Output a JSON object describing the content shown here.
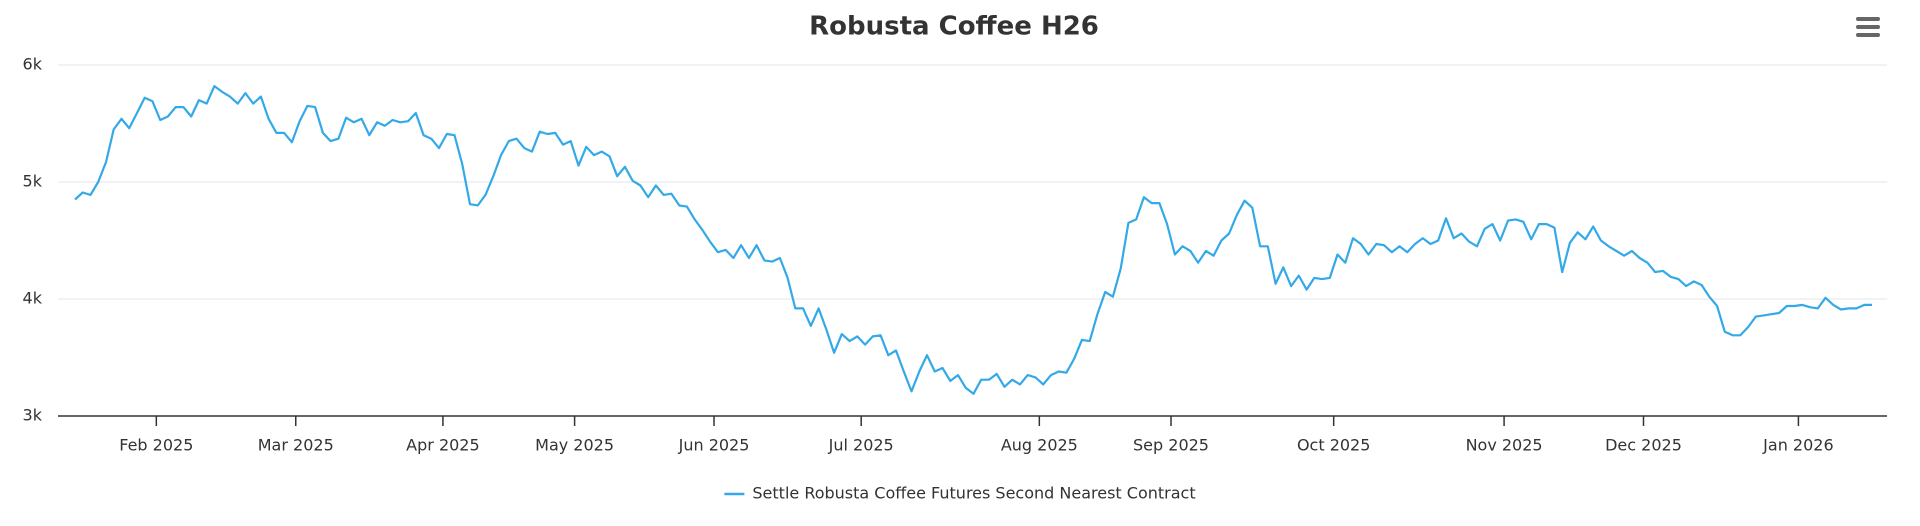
{
  "chart_data": {
    "type": "line",
    "title": "Robusta Coffee H26",
    "x": [
      "2025-01",
      "2025-01",
      "2025-01",
      "2025-01",
      "2025-01",
      "2025-01",
      "2025-01",
      "2025-01",
      "2025-01",
      "2025-01",
      "2025-01",
      "2025-02",
      "2025-02",
      "2025-02",
      "2025-02",
      "2025-02",
      "2025-02",
      "2025-02",
      "2025-02",
      "2025-02",
      "2025-02",
      "2025-02",
      "2025-02",
      "2025-02",
      "2025-02",
      "2025-02",
      "2025-02",
      "2025-02",
      "2025-02",
      "2025-03",
      "2025-03",
      "2025-03",
      "2025-03",
      "2025-03",
      "2025-03",
      "2025-03",
      "2025-03",
      "2025-03",
      "2025-03",
      "2025-03",
      "2025-03",
      "2025-03",
      "2025-03",
      "2025-03",
      "2025-03",
      "2025-03",
      "2025-03",
      "2025-03",
      "2025-04",
      "2025-04",
      "2025-04",
      "2025-04",
      "2025-04",
      "2025-04",
      "2025-04",
      "2025-04",
      "2025-04",
      "2025-04",
      "2025-04",
      "2025-04",
      "2025-04",
      "2025-04",
      "2025-04",
      "2025-04",
      "2025-04",
      "2025-05",
      "2025-05",
      "2025-05",
      "2025-05",
      "2025-05",
      "2025-05",
      "2025-05",
      "2025-05",
      "2025-05",
      "2025-05",
      "2025-05",
      "2025-05",
      "2025-05",
      "2025-05",
      "2025-05",
      "2025-05",
      "2025-05",
      "2025-05",
      "2025-06",
      "2025-06",
      "2025-06",
      "2025-06",
      "2025-06",
      "2025-06",
      "2025-06",
      "2025-06",
      "2025-06",
      "2025-06",
      "2025-06",
      "2025-06",
      "2025-06",
      "2025-06",
      "2025-06",
      "2025-06",
      "2025-06",
      "2025-06",
      "2025-06",
      "2025-07",
      "2025-07",
      "2025-07",
      "2025-07",
      "2025-07",
      "2025-07",
      "2025-07",
      "2025-07",
      "2025-07",
      "2025-07",
      "2025-07",
      "2025-07",
      "2025-07",
      "2025-07",
      "2025-07",
      "2025-07",
      "2025-07",
      "2025-07",
      "2025-07",
      "2025-07",
      "2025-07",
      "2025-07",
      "2025-07",
      "2025-08",
      "2025-08",
      "2025-08",
      "2025-08",
      "2025-08",
      "2025-08",
      "2025-08",
      "2025-08",
      "2025-08",
      "2025-08",
      "2025-08",
      "2025-08",
      "2025-08",
      "2025-08",
      "2025-08",
      "2025-08",
      "2025-08",
      "2025-09",
      "2025-09",
      "2025-09",
      "2025-09",
      "2025-09",
      "2025-09",
      "2025-09",
      "2025-09",
      "2025-09",
      "2025-09",
      "2025-09",
      "2025-09",
      "2025-09",
      "2025-09",
      "2025-09",
      "2025-09",
      "2025-09",
      "2025-09",
      "2025-09",
      "2025-09",
      "2025-09",
      "2025-10",
      "2025-10",
      "2025-10",
      "2025-10",
      "2025-10",
      "2025-10",
      "2025-10",
      "2025-10",
      "2025-10",
      "2025-10",
      "2025-10",
      "2025-10",
      "2025-10",
      "2025-10",
      "2025-10",
      "2025-10",
      "2025-10",
      "2025-10",
      "2025-10",
      "2025-10",
      "2025-10",
      "2025-10",
      "2025-11",
      "2025-11",
      "2025-11",
      "2025-11",
      "2025-11",
      "2025-11",
      "2025-11",
      "2025-11",
      "2025-11",
      "2025-11",
      "2025-11",
      "2025-11",
      "2025-11",
      "2025-11",
      "2025-11",
      "2025-11",
      "2025-11",
      "2025-11",
      "2025-12",
      "2025-12",
      "2025-12",
      "2025-12",
      "2025-12",
      "2025-12",
      "2025-12",
      "2025-12",
      "2025-12",
      "2025-12",
      "2025-12",
      "2025-12",
      "2025-12",
      "2025-12",
      "2025-12",
      "2025-12",
      "2025-12",
      "2025-12",
      "2025-12",
      "2025-12",
      "2026-01",
      "2026-01",
      "2026-01",
      "2026-01",
      "2026-01",
      "2026-01",
      "2026-01",
      "2026-01",
      "2026-01",
      "2026-01"
    ],
    "series": [
      {
        "name": "Settle Robusta Coffee Futures Second Nearest Contract",
        "color": "#33a9e8",
        "values": [
          4850,
          4910,
          4890,
          5000,
          5170,
          5450,
          5540,
          5460,
          5590,
          5720,
          5690,
          5530,
          5560,
          5640,
          5640,
          5560,
          5700,
          5670,
          5820,
          5770,
          5730,
          5670,
          5760,
          5670,
          5730,
          5540,
          5420,
          5420,
          5340,
          5520,
          5650,
          5640,
          5420,
          5350,
          5370,
          5550,
          5510,
          5540,
          5400,
          5510,
          5480,
          5530,
          5510,
          5520,
          5590,
          5400,
          5370,
          5290,
          5410,
          5400,
          5150,
          4810,
          4800,
          4890,
          5050,
          5230,
          5350,
          5370,
          5290,
          5260,
          5430,
          5410,
          5420,
          5320,
          5350,
          5140,
          5300,
          5230,
          5260,
          5220,
          5050,
          5130,
          5010,
          4970,
          4870,
          4970,
          4890,
          4900,
          4800,
          4790,
          4680,
          4590,
          4490,
          4400,
          4420,
          4350,
          4460,
          4350,
          4460,
          4330,
          4320,
          4350,
          4180,
          3920,
          3920,
          3770,
          3920,
          3740,
          3540,
          3700,
          3640,
          3680,
          3610,
          3680,
          3690,
          3520,
          3560,
          3380,
          3210,
          3380,
          3520,
          3380,
          3410,
          3300,
          3350,
          3240,
          3190,
          3310,
          3310,
          3360,
          3250,
          3310,
          3270,
          3350,
          3330,
          3270,
          3350,
          3380,
          3370,
          3490,
          3650,
          3640,
          3870,
          4060,
          4020,
          4260,
          4650,
          4680,
          4870,
          4820,
          4820,
          4640,
          4380,
          4450,
          4410,
          4310,
          4410,
          4370,
          4500,
          4560,
          4720,
          4840,
          4780,
          4450,
          4450,
          4130,
          4270,
          4110,
          4200,
          4080,
          4180,
          4170,
          4180,
          4380,
          4310,
          4520,
          4470,
          4380,
          4470,
          4460,
          4400,
          4450,
          4400,
          4470,
          4520,
          4470,
          4500,
          4690,
          4520,
          4560,
          4490,
          4450,
          4600,
          4640,
          4500,
          4670,
          4680,
          4660,
          4510,
          4640,
          4640,
          4610,
          4230,
          4480,
          4570,
          4510,
          4620,
          4500,
          4450,
          4410,
          4370,
          4410,
          4350,
          4310,
          4230,
          4240,
          4190,
          4170,
          4110,
          4150,
          4120,
          4020,
          3940,
          3720,
          3690,
          3690,
          3760,
          3850,
          3860,
          3870,
          3880,
          3940,
          3940,
          3950,
          3930,
          3920,
          4010,
          3950,
          3910,
          3920,
          3920,
          3950,
          3950
        ]
      }
    ],
    "xticks": [
      {
        "value": "2025-02",
        "label": "Feb 2025"
      },
      {
        "value": "2025-03",
        "label": "Mar 2025"
      },
      {
        "value": "2025-04",
        "label": "Apr 2025"
      },
      {
        "value": "2025-05",
        "label": "May 2025"
      },
      {
        "value": "2025-06",
        "label": "Jun 2025"
      },
      {
        "value": "2025-07",
        "label": "Jul 2025"
      },
      {
        "value": "2025-08",
        "label": "Aug 2025"
      },
      {
        "value": "2025-09",
        "label": "Sep 2025"
      },
      {
        "value": "2025-10",
        "label": "Oct 2025"
      },
      {
        "value": "2025-11",
        "label": "Nov 2025"
      },
      {
        "value": "2025-12",
        "label": "Dec 2025"
      },
      {
        "value": "2026-01",
        "label": "Jan 2026"
      }
    ],
    "ylim": [
      3000,
      6000
    ],
    "yticks": [
      {
        "value": 3000,
        "label": "3k"
      },
      {
        "value": 4000,
        "label": "4k"
      },
      {
        "value": 5000,
        "label": "5k"
      },
      {
        "value": 6000,
        "label": "6k"
      }
    ],
    "grid": true,
    "legend": "bottom"
  }
}
